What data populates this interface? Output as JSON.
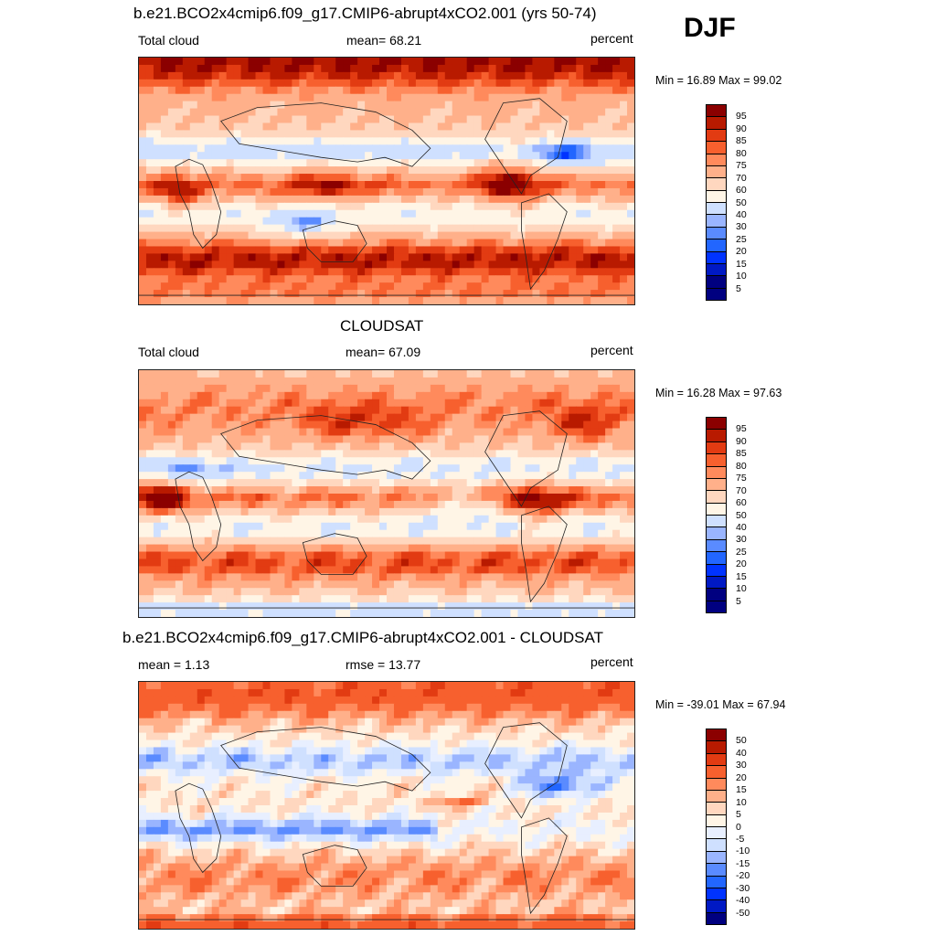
{
  "season": "DJF",
  "colors": {
    "seq": [
      "#000080",
      "#0019c4",
      "#0033ff",
      "#2266ff",
      "#5a8bff",
      "#9ab5ff",
      "#cfe0ff",
      "#fff5e6",
      "#ffd7bf",
      "#ffb08a",
      "#ff8a5c",
      "#f7602e",
      "#e23b12",
      "#b81a00",
      "#8b0000"
    ],
    "div": [
      "#000080",
      "#0019c4",
      "#0033ff",
      "#2266ff",
      "#5a8bff",
      "#9ab5ff",
      "#cfe0ff",
      "#e8efff",
      "#fff5e6",
      "#ffd7bf",
      "#ffb08a",
      "#ff8a5c",
      "#f7602e",
      "#e23b12",
      "#b81a00",
      "#8b0000"
    ]
  },
  "panels": [
    {
      "title": "b.e21.BCO2x4cmip6.f09_g17.CMIP6-abrupt4xCO2.001 (yrs 50-74)",
      "left": "Total cloud",
      "center": "mean=  68.21",
      "units": "percent",
      "minmax": "Min =  16.89 Max =  99.02",
      "levels": [
        "95",
        "90",
        "85",
        "80",
        "75",
        "70",
        "60",
        "50",
        "40",
        "30",
        "25",
        "20",
        "15",
        "10",
        "5"
      ],
      "field": "model"
    },
    {
      "title": "CLOUDSAT",
      "left": "Total cloud",
      "center": "mean=  67.09",
      "units": "percent",
      "minmax": "Min =  16.28 Max =  97.63",
      "levels": [
        "95",
        "90",
        "85",
        "80",
        "75",
        "70",
        "60",
        "50",
        "40",
        "30",
        "25",
        "20",
        "15",
        "10",
        "5"
      ],
      "field": "obs"
    },
    {
      "title": "b.e21.BCO2x4cmip6.f09_g17.CMIP6-abrupt4xCO2.001 - CLOUDSAT",
      "left": "mean =   1.13",
      "center": "rmse =  13.77",
      "units": "percent",
      "minmax": "Min = -39.01 Max =  67.94",
      "levels": [
        "50",
        "40",
        "30",
        "20",
        "15",
        "10",
        "5",
        "0",
        "-5",
        "-10",
        "-15",
        "-20",
        "-30",
        "-40",
        "-50"
      ],
      "field": "diff"
    }
  ]
}
